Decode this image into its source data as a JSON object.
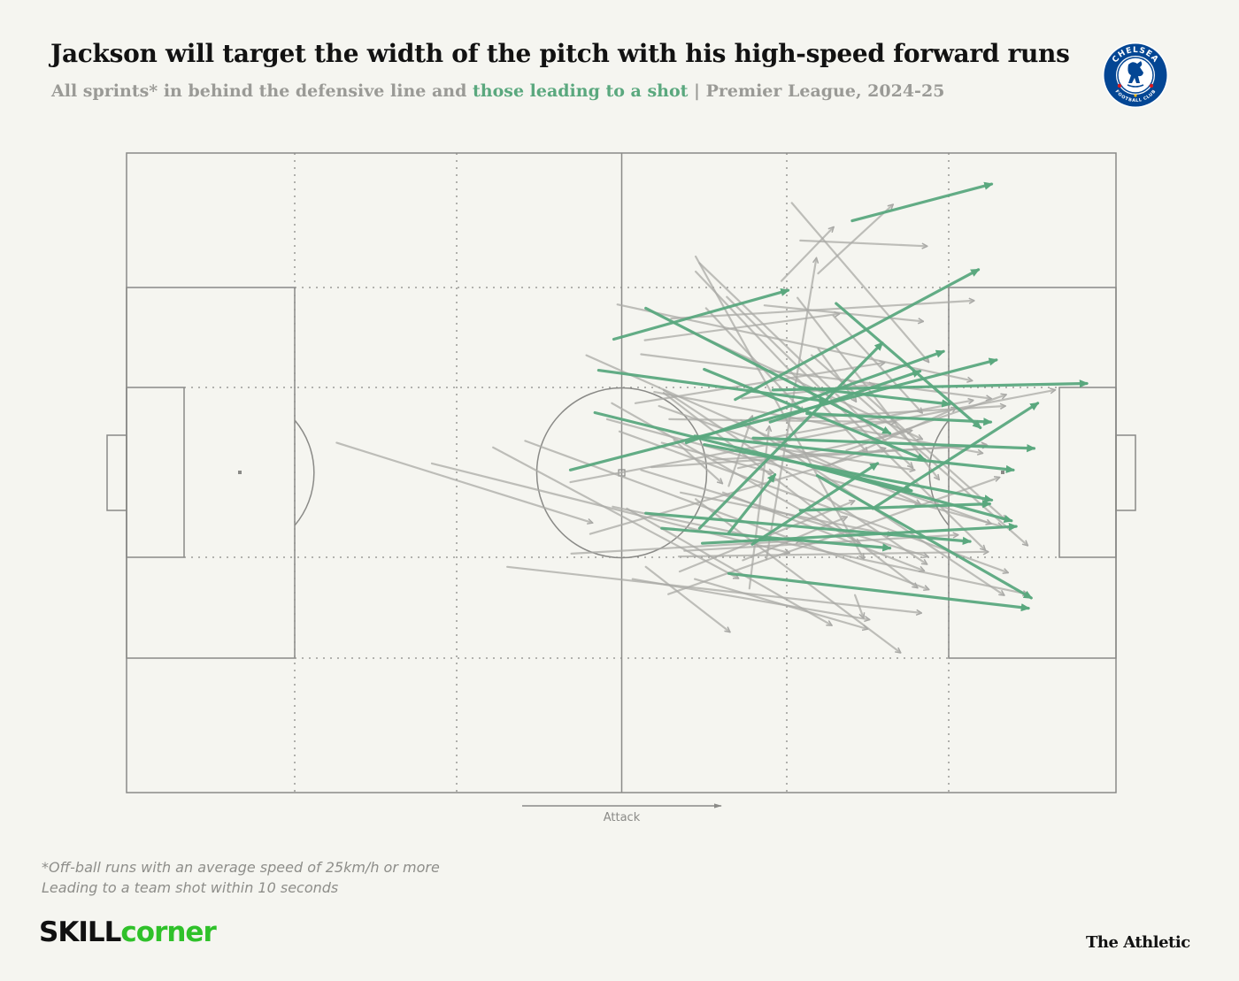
{
  "header": {
    "title": "Jackson will target the width of the pitch with his high-speed forward runs",
    "subtitle_pre": "All sprints* in behind the defensive line and ",
    "subtitle_highlight": "those leading to a shot",
    "subtitle_post": " | Premier League, 2024-25"
  },
  "crest": {
    "text_top": "CHELSEA",
    "text_bottom": "FOOTBALL CLUB"
  },
  "attack_label": "Attack",
  "footnotes": {
    "line1": "*Off-ball runs with an average speed of 25km/h or more",
    "line2": "Leading to a team shot within 10 seconds"
  },
  "brand": {
    "skill_a": "SKILL",
    "skill_b": "corner",
    "athletic": "The Athletic"
  },
  "colors": {
    "background": "#f5f5f0",
    "run": "#a9a9a6",
    "shot_run": "#5aa87e",
    "pitch_line": "#8a8a87"
  },
  "chart_data": {
    "type": "arrow-map",
    "pitch": {
      "length": 105,
      "width": 68,
      "attack_direction": "left-to-right"
    },
    "series": [
      {
        "name": "All sprints*",
        "color": "#a9a9a6",
        "runs": [
          [
            22.3,
            30.8,
            49.4,
            39.3
          ],
          [
            55.1,
            44.0,
            64.0,
            50.9
          ],
          [
            66.6,
            30.6,
            89.8,
            26.3
          ],
          [
            56.5,
            26.9,
            91.7,
            39.4
          ],
          [
            76.4,
            31.6,
            93.3,
            25.7
          ],
          [
            47.1,
            35.0,
            98.5,
            25.2
          ],
          [
            72.7,
            21.5,
            95.6,
            41.7
          ],
          [
            51.0,
            28.3,
            92.9,
            39.7
          ],
          [
            66.1,
            46.3,
            68.2,
            29.1
          ],
          [
            32.4,
            33.0,
            70.3,
            42.5
          ],
          [
            67.9,
            43.2,
            73.2,
            11.2
          ],
          [
            51.6,
            37.6,
            95.6,
            46.9
          ],
          [
            59.2,
            42.3,
            88.2,
            40.6
          ],
          [
            73.4,
            20.8,
            77.4,
            26.4
          ],
          [
            53.7,
            45.3,
            78.8,
            49.6
          ],
          [
            57.5,
            46.9,
            92.6,
            34.5
          ],
          [
            58.1,
            30.5,
            63.2,
            35.1
          ],
          [
            71.5,
            9.3,
            84.9,
            9.9
          ],
          [
            60.8,
            11.7,
            83.4,
            33.4
          ],
          [
            62.3,
            32.6,
            91.3,
            31.1
          ],
          [
            49.2,
            40.5,
            80.5,
            31.4
          ],
          [
            57.8,
            17.6,
            89.9,
            15.7
          ],
          [
            54.6,
            21.4,
            91.7,
            26.1
          ],
          [
            56.0,
            25.4,
            90.8,
            31.9
          ],
          [
            40.4,
            44.0,
            84.3,
            48.9
          ],
          [
            38.9,
            31.3,
            64.9,
            45.2
          ],
          [
            60.4,
            11.0,
            78.2,
            43.1
          ],
          [
            58.6,
            42.9,
            91.4,
            42.4
          ],
          [
            52.1,
            16.1,
            89.7,
            24.2
          ],
          [
            55.0,
            19.9,
            75.6,
            17.1
          ],
          [
            60.4,
            36.8,
            82.1,
            53.1
          ],
          [
            60.3,
            45.3,
            78.6,
            50.6
          ],
          [
            65.2,
            28.4,
            93.1,
            47.0
          ],
          [
            77.3,
            47.0,
            78.2,
            49.4
          ],
          [
            42.3,
            30.6,
            85.1,
            46.4
          ],
          [
            70.6,
            5.3,
            85.1,
            22.2
          ],
          [
            48.8,
            21.5,
            84.2,
            37.3
          ],
          [
            65.4,
            43.3,
            76.4,
            38.7
          ],
          [
            73.4,
            12.8,
            81.3,
            5.5
          ],
          [
            64.9,
            33.5,
            83.3,
            29.5
          ],
          [
            60.4,
            12.6,
            78.6,
            31.8
          ],
          [
            55.7,
            33.4,
            91.2,
            31.0
          ],
          [
            69.5,
            13.6,
            75.0,
            7.9
          ],
          [
            57.6,
            28.3,
            81.6,
            28.6
          ],
          [
            69.0,
            31.4,
            83.6,
            33.7
          ],
          [
            76.5,
            24.0,
            93.3,
            39.0
          ],
          [
            56.8,
            30.8,
            68.6,
            34.0
          ],
          [
            67.7,
            16.2,
            84.5,
            17.9
          ],
          [
            63.7,
            15.3,
            91.1,
            42.2
          ],
          [
            53.1,
            37.8,
            74.8,
            50.2
          ],
          [
            61.5,
            16.5,
            71.8,
            27.5
          ],
          [
            47.2,
            42.6,
            71.5,
            41.2
          ],
          [
            75.0,
            17.3,
            84.4,
            27.6
          ],
          [
            58.7,
            44.5,
            77.2,
            37.0
          ],
          [
            52.3,
            29.6,
            93.5,
            44.6
          ],
          [
            63.3,
            36.1,
            84.6,
            44.4
          ],
          [
            59.5,
            18.8,
            84.4,
            30.4
          ],
          [
            57.0,
            25.5,
            83.9,
            46.2
          ],
          [
            51.5,
            26.6,
            77.8,
            41.5
          ],
          [
            58.8,
            36.1,
            81.2,
            40.6
          ],
          [
            69.4,
            28.3,
            93.2,
            26.9
          ],
          [
            71.2,
            15.4,
            86.2,
            34.7
          ],
          [
            54.6,
            33.7,
            85.0,
            42.9
          ],
          [
            57.0,
            25.2,
            84.9,
            43.7
          ],
          [
            63.9,
            35.4,
            66.4,
            28.0
          ],
          [
            65.3,
            26.1,
            79.3,
            24.6
          ],
          [
            73.9,
            33.5,
            88.0,
            27.1
          ],
          [
            54.0,
            26.6,
            80.4,
            22.3
          ]
        ]
      },
      {
        "name": "those leading to a shot",
        "color": "#5aa87e",
        "runs": [
          [
            60.8,
            39.9,
            80.2,
            20.2
          ],
          [
            59.4,
            30.8,
            86.7,
            21.1
          ],
          [
            71.5,
            38.0,
            91.6,
            37.3
          ],
          [
            77.0,
            7.2,
            91.8,
            3.3
          ],
          [
            68.6,
            25.2,
            101.9,
            24.5
          ],
          [
            72.2,
            27.7,
            91.7,
            28.6
          ],
          [
            71.5,
            24.9,
            87.3,
            26.7
          ],
          [
            64.6,
            26.2,
            90.4,
            12.4
          ],
          [
            61.3,
            23.0,
            84.7,
            32.6
          ],
          [
            66.4,
            41.6,
            79.7,
            33.0
          ],
          [
            61.3,
            31.0,
            91.8,
            36.9
          ],
          [
            79.2,
            37.8,
            96.7,
            26.6
          ],
          [
            55.1,
            16.5,
            81.0,
            29.8
          ],
          [
            75.3,
            16.0,
            90.6,
            29.2
          ],
          [
            66.5,
            30.3,
            96.3,
            31.4
          ],
          [
            68.3,
            28.6,
            84.2,
            23.2
          ],
          [
            49.7,
            27.6,
            83.3,
            35.9
          ],
          [
            50.1,
            23.1,
            74.3,
            26.4
          ],
          [
            63.9,
            40.4,
            68.8,
            34.2
          ],
          [
            60.3,
            30.1,
            94.1,
            33.7
          ],
          [
            51.7,
            19.8,
            70.2,
            14.6
          ],
          [
            47.1,
            33.7,
            92.3,
            22.0
          ],
          [
            63.9,
            44.7,
            95.7,
            48.4
          ],
          [
            56.8,
            39.9,
            81.0,
            42.0
          ],
          [
            61.1,
            41.5,
            94.4,
            39.7
          ],
          [
            73.3,
            34.3,
            96.0,
            47.3
          ],
          [
            72.2,
            33.2,
            93.9,
            39.1
          ],
          [
            55.1,
            38.3,
            89.5,
            41.3
          ]
        ]
      }
    ]
  }
}
